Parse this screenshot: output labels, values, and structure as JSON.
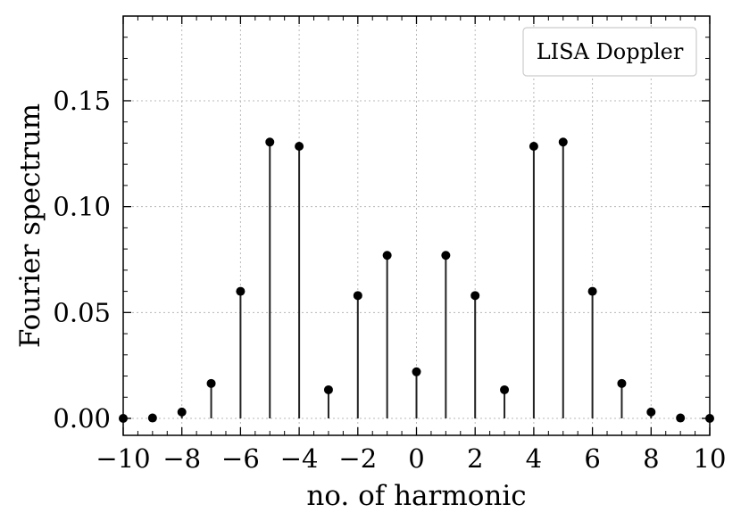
{
  "chart_data": {
    "type": "stem",
    "xlabel": "no. of harmonic",
    "ylabel": "Fourier spectrum",
    "xlim": [
      -10,
      10
    ],
    "ylim": [
      -0.008,
      0.19
    ],
    "x_ticks": [
      -10,
      -8,
      -6,
      -4,
      -2,
      0,
      2,
      4,
      6,
      8,
      10
    ],
    "x_tick_labels": [
      "−10",
      "−8",
      "−6",
      "−4",
      "−2",
      "0",
      "2",
      "4",
      "6",
      "8",
      "10"
    ],
    "y_ticks": [
      0.0,
      0.05,
      0.1,
      0.15
    ],
    "y_tick_labels": [
      "0.00",
      "0.05",
      "0.10",
      "0.15"
    ],
    "grid": true,
    "legend": {
      "label": "LISA Doppler",
      "placement": "top-right"
    },
    "series": [
      {
        "name": "LISA Doppler",
        "color": "#000000",
        "x": [
          -10,
          -9,
          -8,
          -7,
          -6,
          -5,
          -4,
          -3,
          -2,
          -1,
          0,
          1,
          2,
          3,
          4,
          5,
          6,
          7,
          8,
          9,
          10
        ],
        "y": [
          0.0,
          0.0002,
          0.003,
          0.0165,
          0.06,
          0.1305,
          0.1285,
          0.0135,
          0.058,
          0.077,
          0.022,
          0.077,
          0.058,
          0.0135,
          0.1285,
          0.1305,
          0.06,
          0.0165,
          0.003,
          0.0002,
          0.0
        ]
      }
    ]
  }
}
